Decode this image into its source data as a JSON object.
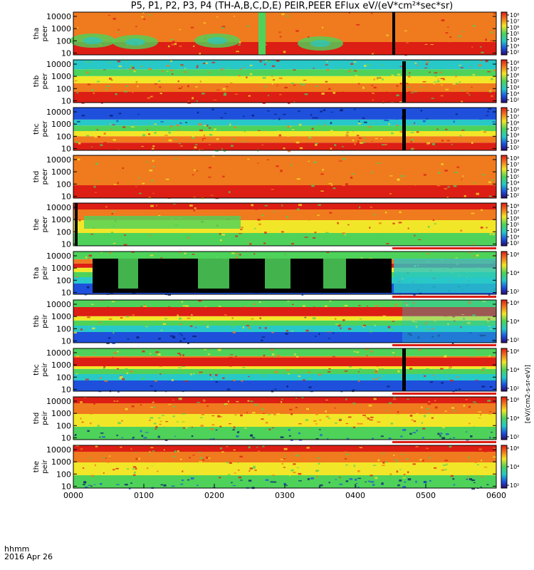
{
  "title": "P5, P1, P2, P3, P4 (TH-A,B,C,D,E) PEIR,PEER EFlux eV/(eV*cm²*sec*sr)",
  "x_axis_label": "hhmm",
  "date_label": "2016 Apr 26",
  "colorbar_caption": "[eV/(cm2-s-sr-eV)]",
  "chart_data": {
    "type": "heatmap",
    "x_ticks": [
      "0000",
      "0100",
      "0200",
      "0300",
      "0400",
      "0500",
      "0600"
    ],
    "xlim": [
      "00:00",
      "06:00"
    ],
    "y_scale": "log",
    "y_ticks": [
      "10",
      "100",
      "1000",
      "10000"
    ],
    "panels": [
      {
        "probe": "tha",
        "species": "peer",
        "cbar_ticks": [
          "10²",
          "10³",
          "10⁴",
          "10⁵",
          "10⁶",
          "10⁷",
          "10⁸"
        ]
      },
      {
        "probe": "thb",
        "species": "peer",
        "cbar_ticks": [
          "10²",
          "10³",
          "10⁴",
          "10⁵",
          "10⁶",
          "10⁷",
          "10⁸"
        ]
      },
      {
        "probe": "thc",
        "species": "peer",
        "cbar_ticks": [
          "10²",
          "10³",
          "10⁴",
          "10⁵",
          "10⁶",
          "10⁷",
          "10⁸"
        ]
      },
      {
        "probe": "thd",
        "species": "peer",
        "cbar_ticks": [
          "10²",
          "10³",
          "10⁴",
          "10⁵",
          "10⁶",
          "10⁷",
          "10⁸"
        ]
      },
      {
        "probe": "the",
        "species": "peer",
        "cbar_ticks": [
          "10²",
          "10³",
          "10⁴",
          "10⁵",
          "10⁶",
          "10⁷",
          "10⁸"
        ]
      },
      {
        "probe": "tha",
        "species": "peir",
        "cbar_ticks": [
          "10²",
          "10⁴",
          "10⁶"
        ]
      },
      {
        "probe": "thb",
        "species": "peir",
        "cbar_ticks": [
          "10²",
          "10⁴",
          "10⁶"
        ]
      },
      {
        "probe": "thc",
        "species": "peir",
        "cbar_ticks": [
          "10²",
          "10⁴",
          "10⁶"
        ]
      },
      {
        "probe": "thd",
        "species": "peir",
        "cbar_ticks": [
          "10²",
          "10⁴",
          "10⁶"
        ]
      },
      {
        "probe": "the",
        "species": "peir",
        "cbar_ticks": [
          "10²",
          "10⁴",
          "10⁶"
        ]
      }
    ]
  },
  "colors": {
    "red": "#dc1e14",
    "orange": "#f07a1e",
    "yellow": "#f2e628",
    "green": "#4ed25a",
    "cyan": "#28c8c8",
    "blue": "#1e50dc",
    "navy": "#0a1a6e",
    "black": "#000000"
  }
}
